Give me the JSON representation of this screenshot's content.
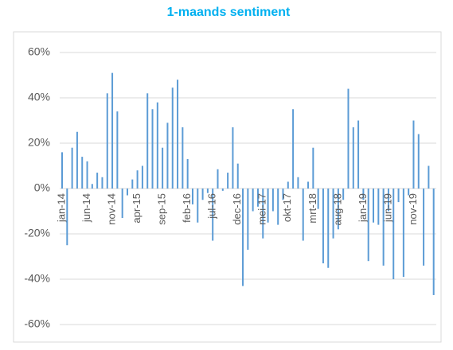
{
  "chart_data": {
    "type": "bar",
    "title": "1-maands sentiment",
    "categories": [
      "jan-14",
      null,
      null,
      null,
      null,
      "jun-14",
      null,
      null,
      null,
      null,
      "nov-14",
      null,
      null,
      null,
      null,
      "apr-15",
      null,
      null,
      null,
      null,
      "sep-15",
      null,
      null,
      null,
      null,
      "feb-16",
      null,
      null,
      null,
      null,
      "jul-16",
      null,
      null,
      null,
      null,
      "dec-16",
      null,
      null,
      null,
      null,
      "mei-17",
      null,
      null,
      null,
      null,
      "okt-17",
      null,
      null,
      null,
      null,
      "mrt-18",
      null,
      null,
      null,
      null,
      "aug-18",
      null,
      null,
      null,
      null,
      "jan-19",
      null,
      null,
      null,
      null,
      "jun-19",
      null,
      null,
      null,
      null,
      "nov-19",
      null,
      null,
      null,
      null
    ],
    "values": [
      16,
      -25,
      18,
      25,
      14,
      12,
      2,
      7,
      5,
      42,
      51,
      34,
      -13,
      -3,
      4,
      8,
      10,
      42,
      35,
      38,
      18,
      29,
      44.5,
      48,
      27,
      13,
      -7,
      -15,
      -5,
      -2,
      -23,
      8.5,
      -1,
      7,
      27,
      11,
      -43,
      -27,
      -10,
      -8,
      -22,
      -15,
      -10,
      -16,
      -5,
      3,
      35,
      5,
      -23,
      3,
      18,
      -9,
      -33,
      -35,
      -22,
      -18,
      -5,
      44,
      27,
      30,
      -5,
      -32,
      -15,
      -16,
      -34,
      -10,
      -40,
      -6,
      -39,
      -3,
      30,
      24,
      -34,
      10,
      -47
    ],
    "color": "#5b9bd5",
    "ylim": [
      -60,
      60
    ],
    "yticks": [
      {
        "value": -60,
        "label": "-60%"
      },
      {
        "value": -40,
        "label": "-40%"
      },
      {
        "value": -20,
        "label": "-20%"
      },
      {
        "value": 0,
        "label": "0%"
      },
      {
        "value": 20,
        "label": "20%"
      },
      {
        "value": 40,
        "label": "40%"
      },
      {
        "value": 60,
        "label": "60%"
      }
    ],
    "grid": true
  }
}
